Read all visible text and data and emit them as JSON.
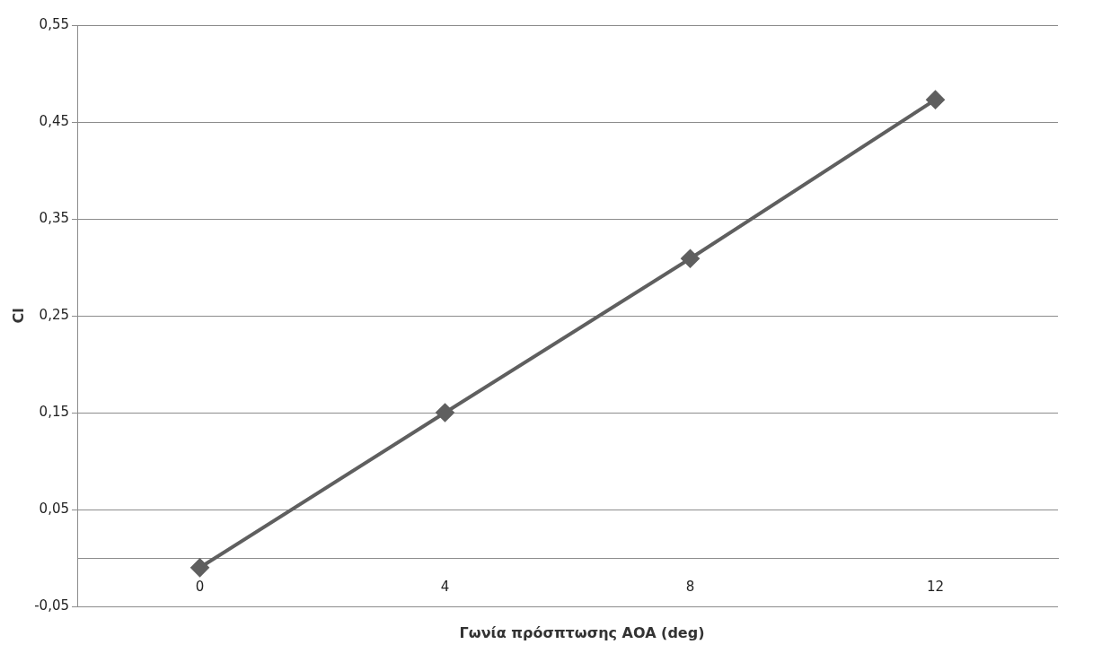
{
  "chart_data": {
    "type": "line",
    "xlabel": "Γωνία πρόσπτωσης AOA (deg)",
    "ylabel": "Cl",
    "categories": [
      "0",
      "4",
      "8",
      "12"
    ],
    "series": [
      {
        "color": "#5f5f5f",
        "values": [
          -0.01,
          0.15,
          0.309,
          0.473
        ]
      }
    ],
    "ylim": [
      -0.05,
      0.55
    ],
    "yticks": [
      {
        "value": -0.05,
        "label": "-0,05"
      },
      {
        "value": 0.05,
        "label": "0,05"
      },
      {
        "value": 0.15,
        "label": "0,15"
      },
      {
        "value": 0.25,
        "label": "0,25"
      },
      {
        "value": 0.35,
        "label": "0,35"
      },
      {
        "value": 0.45,
        "label": "0,45"
      },
      {
        "value": 0.55,
        "label": "0,55"
      }
    ],
    "grid": "y",
    "legend": false,
    "marker": "diamond",
    "line_style": "solid"
  }
}
